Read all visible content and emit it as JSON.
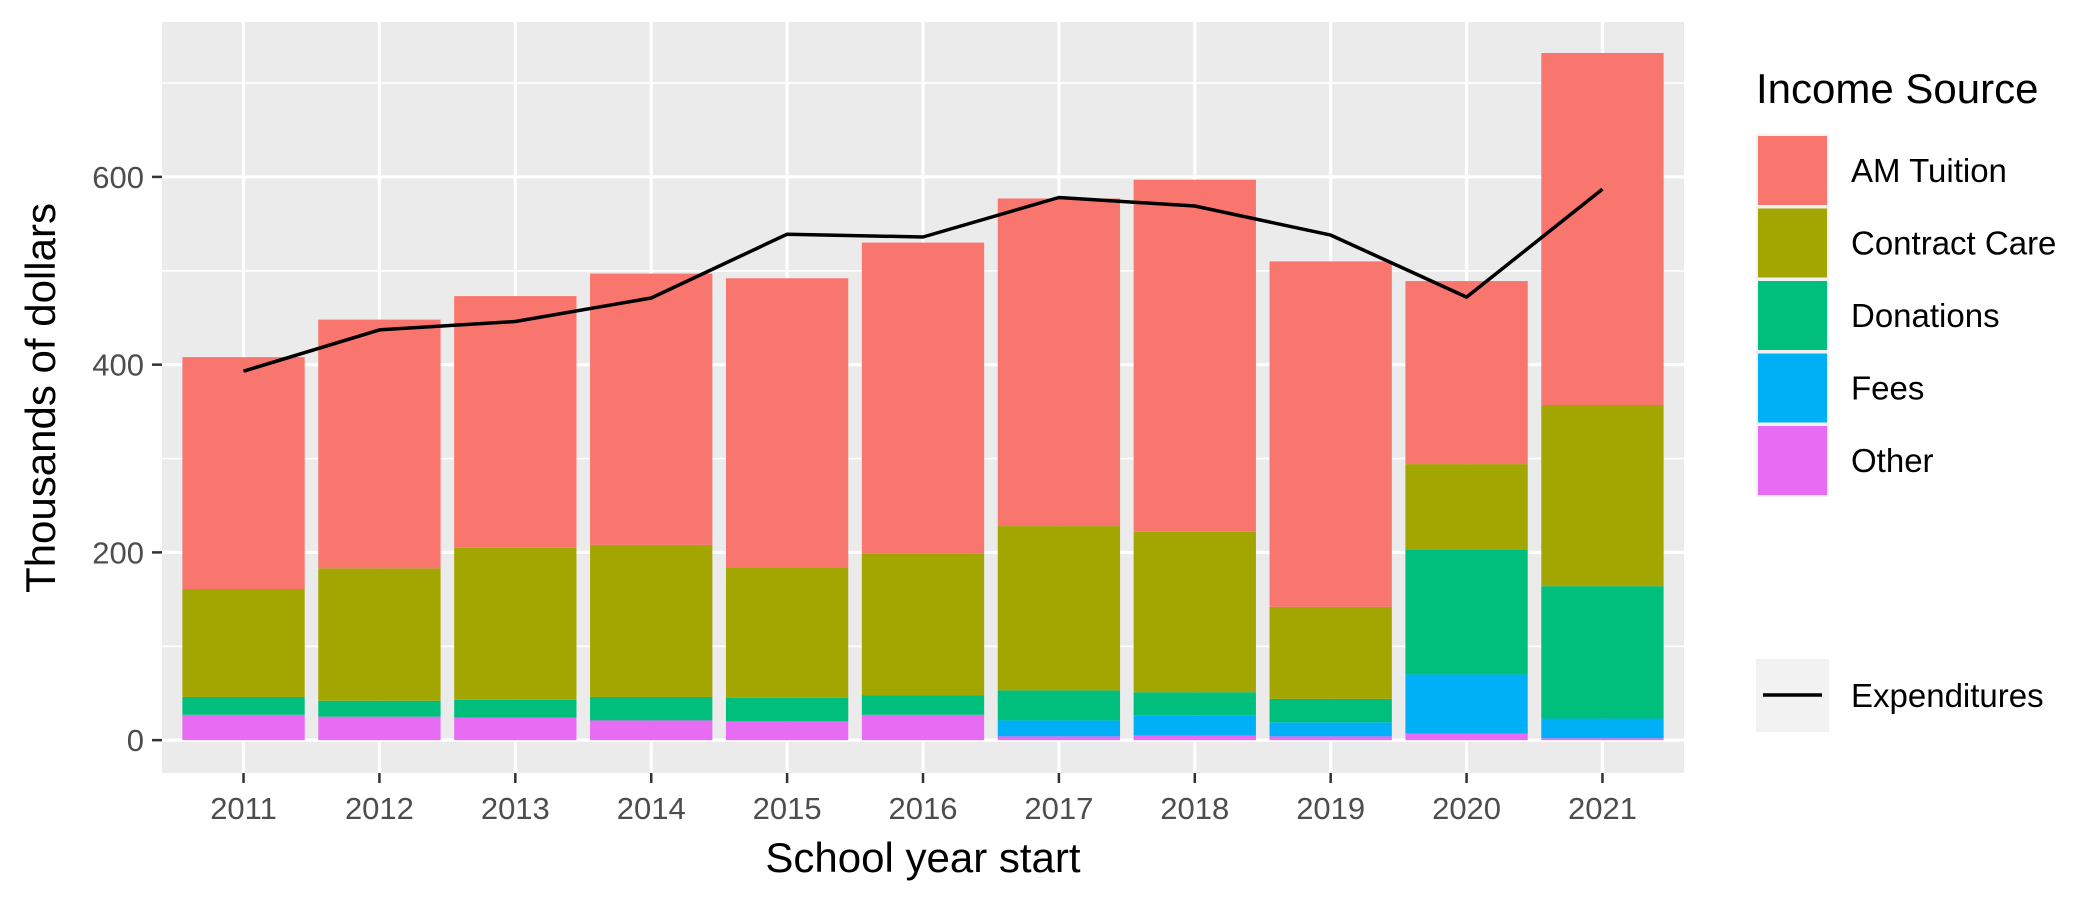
{
  "chart_data": {
    "type": "bar",
    "stacked": true,
    "title": "",
    "xlabel": "School year start",
    "ylabel": "Thousands of dollars",
    "ylim": [
      -35,
      765
    ],
    "yticks": [
      0,
      200,
      400,
      600
    ],
    "grid": true,
    "categories": [
      "2011",
      "2012",
      "2013",
      "2014",
      "2015",
      "2016",
      "2017",
      "2018",
      "2019",
      "2020",
      "2021"
    ],
    "legend": {
      "title": "Income Source",
      "placement": "right"
    },
    "series": [
      {
        "name": "Other",
        "color": "#E76BF3",
        "values": [
          27,
          25,
          24,
          21,
          20,
          27,
          4,
          5,
          4,
          7,
          2
        ]
      },
      {
        "name": "Fees",
        "color": "#00B0F6",
        "values": [
          0,
          0,
          0,
          0,
          0,
          0,
          17,
          21,
          15,
          63,
          21
        ]
      },
      {
        "name": "Donations",
        "color": "#00BF7D",
        "values": [
          19,
          17,
          19,
          25,
          25,
          21,
          32,
          25,
          25,
          133,
          141
        ]
      },
      {
        "name": "Contract Care",
        "color": "#A3A500",
        "values": [
          115,
          141,
          162,
          162,
          139,
          151,
          175,
          171,
          98,
          91,
          193
        ]
      },
      {
        "name": "AM Tuition",
        "color": "#F8766D",
        "values": [
          247,
          265,
          268,
          289,
          308,
          331,
          349,
          375,
          368,
          195,
          375
        ]
      }
    ],
    "line_series": {
      "name": "Expenditures",
      "color": "#000000",
      "values": [
        393,
        437,
        446,
        471,
        539,
        536,
        578,
        569,
        538,
        472,
        587
      ]
    },
    "legend_order": [
      "AM Tuition",
      "Contract Care",
      "Donations",
      "Fees",
      "Other"
    ]
  }
}
